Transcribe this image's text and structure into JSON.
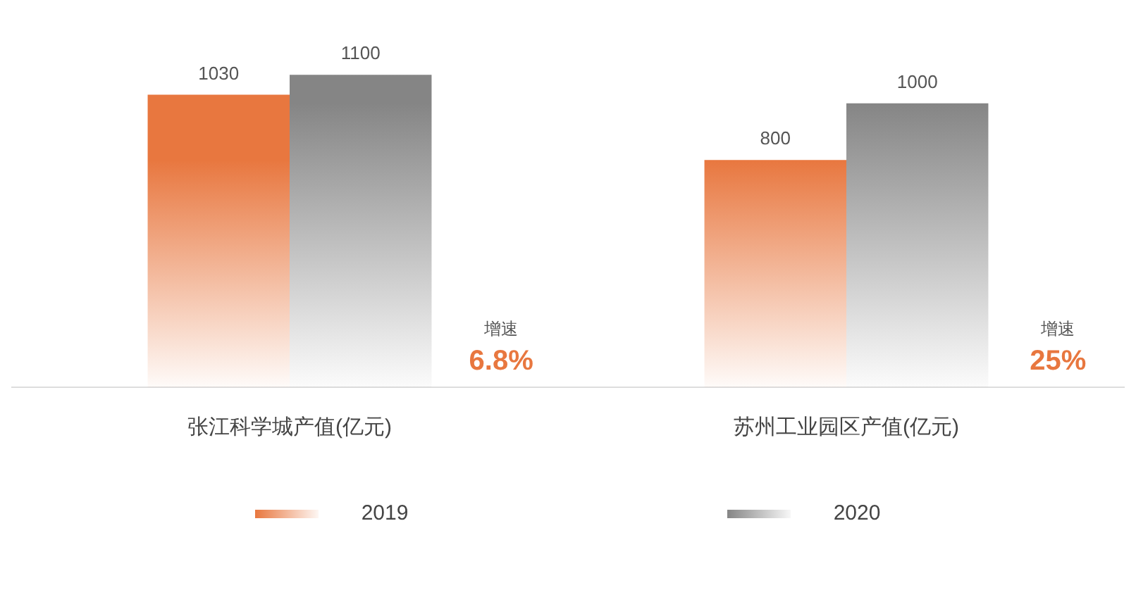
{
  "chart_data": {
    "type": "bar",
    "categories": [
      "张江科学城产值(亿元)",
      "苏州工业园区产值(亿元)"
    ],
    "series": [
      {
        "name": "2019",
        "color": "#e8773f",
        "values": [
          1030,
          800
        ]
      },
      {
        "name": "2020",
        "color": "#858585",
        "values": [
          1100,
          1000
        ]
      }
    ],
    "data_labels": true,
    "legend": "bottom",
    "grid": false,
    "annotations": [
      "增速",
      "6.8%",
      "增速",
      "25%"
    ]
  }
}
